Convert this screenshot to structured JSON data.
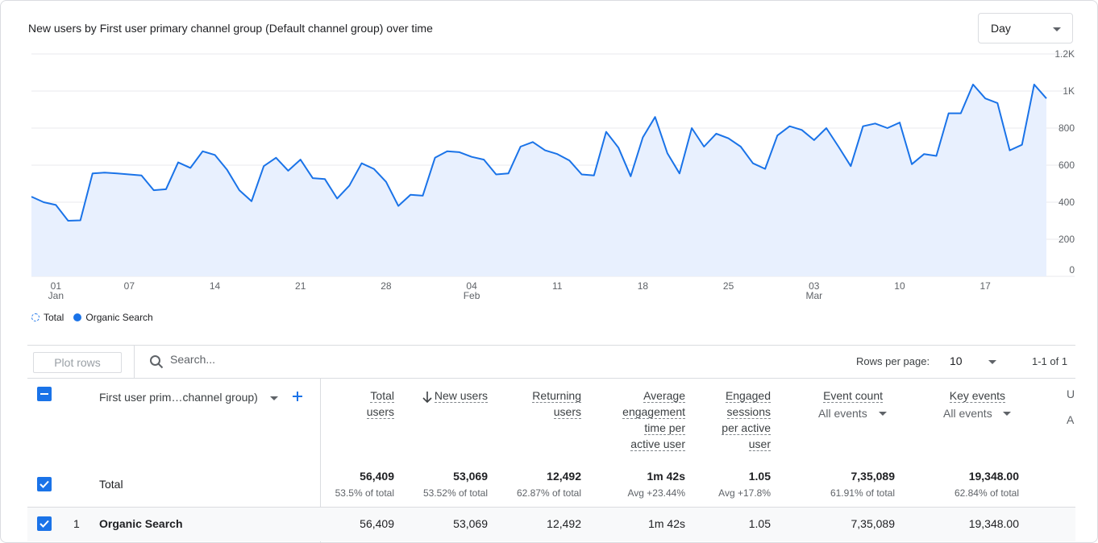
{
  "chart": {
    "title": "New users by First user primary channel group (Default channel group) over time",
    "granularity": "Day",
    "legend": [
      {
        "label": "Total",
        "style": "dashed-ring",
        "color": "#1a73e8"
      },
      {
        "label": "Organic Search",
        "style": "filled-dot",
        "color": "#1a73e8"
      }
    ]
  },
  "chart_data": {
    "type": "area",
    "title": "New users by First user primary channel group (Default channel group) over time",
    "series": [
      {
        "name": "Organic Search",
        "color": "#1a73e8",
        "fill": "#e8f0fe",
        "values": [
          430,
          400,
          385,
          300,
          302,
          555,
          560,
          555,
          550,
          545,
          465,
          470,
          615,
          585,
          675,
          655,
          575,
          465,
          405,
          595,
          640,
          570,
          630,
          530,
          525,
          420,
          490,
          610,
          580,
          510,
          380,
          440,
          435,
          640,
          675,
          670,
          645,
          630,
          550,
          555,
          700,
          725,
          680,
          660,
          625,
          550,
          545,
          780,
          695,
          540,
          750,
          860,
          665,
          555,
          800,
          700,
          770,
          745,
          700,
          610,
          580,
          760,
          810,
          790,
          735,
          800,
          700,
          595,
          810,
          825,
          800,
          830,
          605,
          660,
          650,
          880,
          880,
          1035,
          960,
          935,
          680,
          710,
          1035,
          960
        ]
      }
    ],
    "x_ticks": [
      {
        "label": "01",
        "sub": "Jan",
        "index": 2
      },
      {
        "label": "07",
        "sub": "",
        "index": 8
      },
      {
        "label": "14",
        "sub": "",
        "index": 15
      },
      {
        "label": "21",
        "sub": "",
        "index": 22
      },
      {
        "label": "28",
        "sub": "",
        "index": 29
      },
      {
        "label": "04",
        "sub": "Feb",
        "index": 36
      },
      {
        "label": "11",
        "sub": "",
        "index": 43
      },
      {
        "label": "18",
        "sub": "",
        "index": 50
      },
      {
        "label": "25",
        "sub": "",
        "index": 57
      },
      {
        "label": "03",
        "sub": "Mar",
        "index": 64
      },
      {
        "label": "10",
        "sub": "",
        "index": 71
      },
      {
        "label": "17",
        "sub": "",
        "index": 78
      }
    ],
    "y_ticks": [
      "0",
      "200",
      "400",
      "600",
      "800",
      "1K",
      "1.2K"
    ],
    "ylim": [
      0,
      1200
    ],
    "grid": true
  },
  "toolbar": {
    "plot_rows": "Plot rows",
    "search_placeholder": "Search...",
    "rows_per_page_label": "Rows per page:",
    "rows_per_page": "10",
    "pager": "1-1 of 1"
  },
  "table": {
    "dimension_header": "First user prim…channel group)",
    "metrics": [
      {
        "lines": [
          "Total",
          "users"
        ],
        "sub": ""
      },
      {
        "lines": [
          "New users"
        ],
        "sub": "",
        "sorted": true
      },
      {
        "lines": [
          "Returning",
          "users"
        ],
        "sub": ""
      },
      {
        "lines": [
          "Average",
          "engagement",
          "time per",
          "active user"
        ],
        "sub": ""
      },
      {
        "lines": [
          "Engaged",
          "sessions",
          "per active",
          "user"
        ],
        "sub": ""
      },
      {
        "lines": [
          "Event count"
        ],
        "sub": "All events"
      },
      {
        "lines": [
          "Key events"
        ],
        "sub": "All events"
      }
    ],
    "clipped_column": {
      "top": "U",
      "bottom": "A"
    },
    "total": {
      "label": "Total",
      "values": [
        "56,409",
        "53,069",
        "12,492",
        "1m 42s",
        "1.05",
        "7,35,089",
        "19,348.00"
      ],
      "subs": [
        "53.5% of total",
        "53.52% of total",
        "62.87% of total",
        "Avg +23.44%",
        "Avg +17.8%",
        "61.91% of total",
        "62.84% of total"
      ]
    },
    "rows": [
      {
        "num": "1",
        "label": "Organic Search",
        "values": [
          "56,409",
          "53,069",
          "12,492",
          "1m 42s",
          "1.05",
          "7,35,089",
          "19,348.00"
        ]
      }
    ]
  }
}
